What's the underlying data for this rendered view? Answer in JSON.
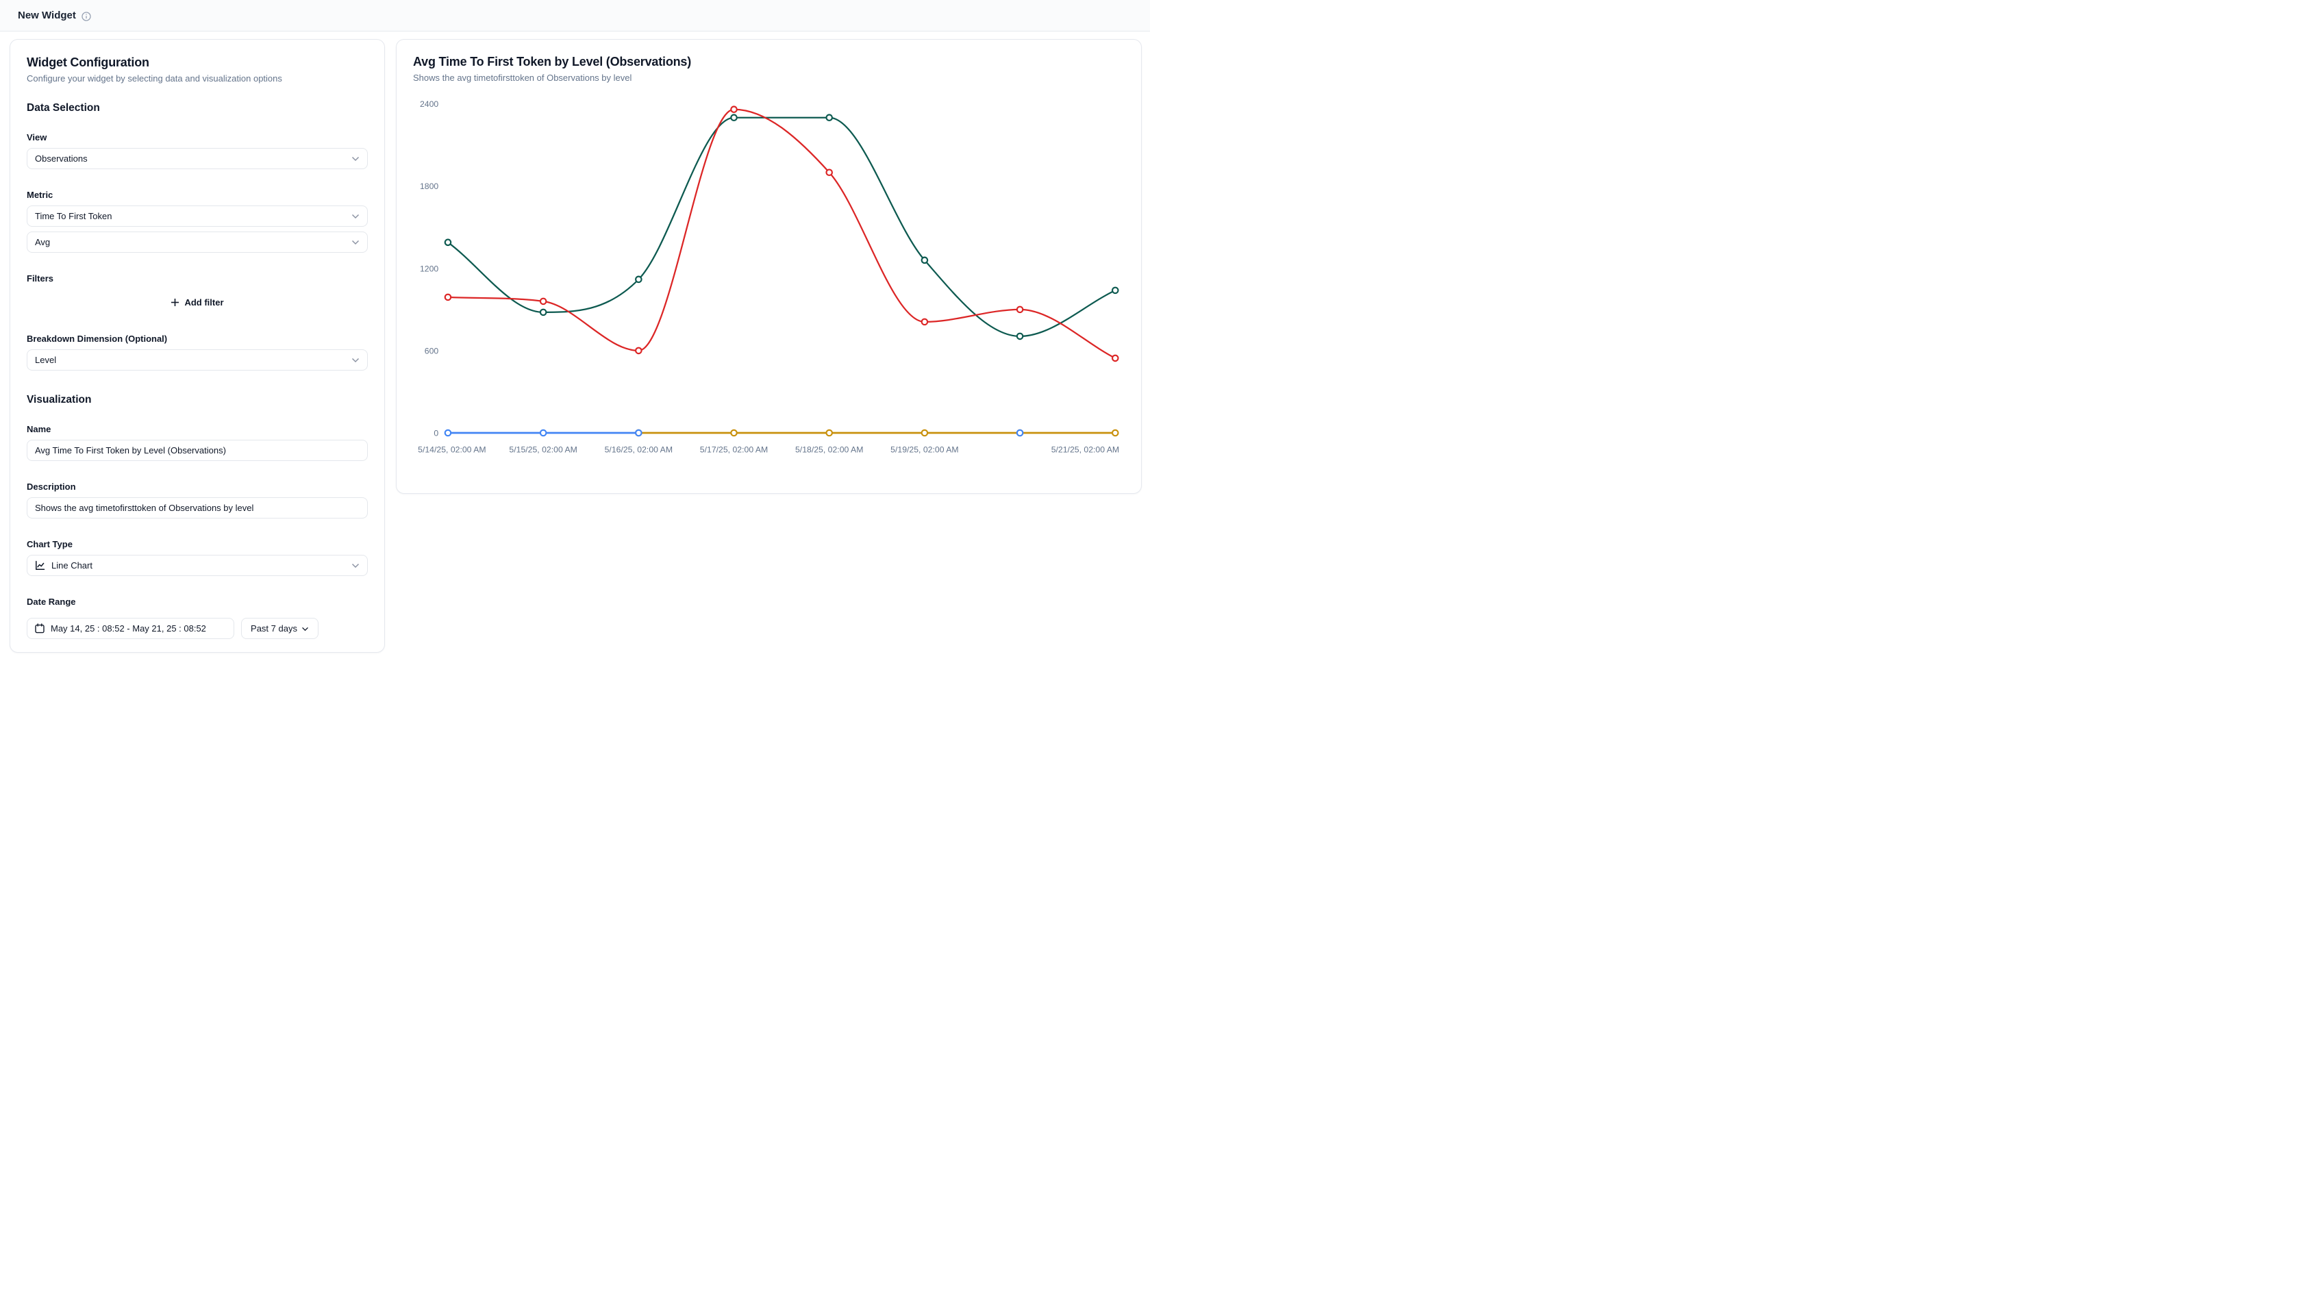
{
  "topbar": {
    "title": "New Widget"
  },
  "config_panel": {
    "title": "Widget Configuration",
    "subtitle": "Configure your widget by selecting data and visualization options",
    "data_section_heading": "Data Selection",
    "view": {
      "label": "View",
      "value": "Observations"
    },
    "metric": {
      "label": "Metric",
      "value": "Time To First Token",
      "aggregation": "Avg"
    },
    "filters": {
      "label": "Filters",
      "add_button": "Add filter"
    },
    "breakdown": {
      "label": "Breakdown Dimension (Optional)",
      "value": "Level"
    },
    "viz_section_heading": "Visualization",
    "name": {
      "label": "Name",
      "value": "Avg Time To First Token by Level (Observations)"
    },
    "description": {
      "label": "Description",
      "value": "Shows the avg timetofirsttoken of Observations by level"
    },
    "chart_type": {
      "label": "Chart Type",
      "value": "Line Chart"
    },
    "date_range": {
      "label": "Date Range",
      "value": "May 14, 25 : 08:52 - May 21, 25 : 08:52",
      "preset": "Past 7 days"
    }
  },
  "chart_card": {
    "title": "Avg Time To First Token by Level (Observations)",
    "subtitle": "Shows the avg timetofirsttoken of Observations by level"
  },
  "chart_data": {
    "type": "line",
    "title": "Avg Time To First Token by Level (Observations)",
    "x_labels": [
      "5/14/25, 02:00 AM",
      "5/15/25, 02:00 AM",
      "5/16/25, 02:00 AM",
      "5/17/25, 02:00 AM",
      "5/18/25, 02:00 AM",
      "5/19/25, 02:00 AM",
      null,
      "5/21/25, 02:00 AM"
    ],
    "ylim": [
      0,
      2400
    ],
    "yticks": [
      0,
      600,
      1200,
      1800,
      2400
    ],
    "grid": false,
    "legend": false,
    "curve": "monotone",
    "marker": "open-circle",
    "axis_text_color": "#64748b",
    "series": [
      {
        "name": "teal",
        "color": "#0d5a50",
        "stroke_width": 2.3,
        "values": [
          1390,
          880,
          1120,
          2300,
          2300,
          1260,
          705,
          1040
        ]
      },
      {
        "name": "red",
        "color": "#dc2626",
        "stroke_width": 2.3,
        "values": [
          990,
          960,
          600,
          2360,
          1900,
          810,
          900,
          545
        ]
      },
      {
        "name": "orange",
        "color": "#c8900c",
        "stroke_width": 2.8,
        "values": [
          null,
          null,
          0,
          0,
          0,
          0,
          0,
          0
        ]
      },
      {
        "name": "blue",
        "color": "#4285f4",
        "stroke_width": 2.8,
        "values": [
          0,
          0,
          0,
          null,
          null,
          null,
          0,
          null
        ]
      }
    ]
  }
}
